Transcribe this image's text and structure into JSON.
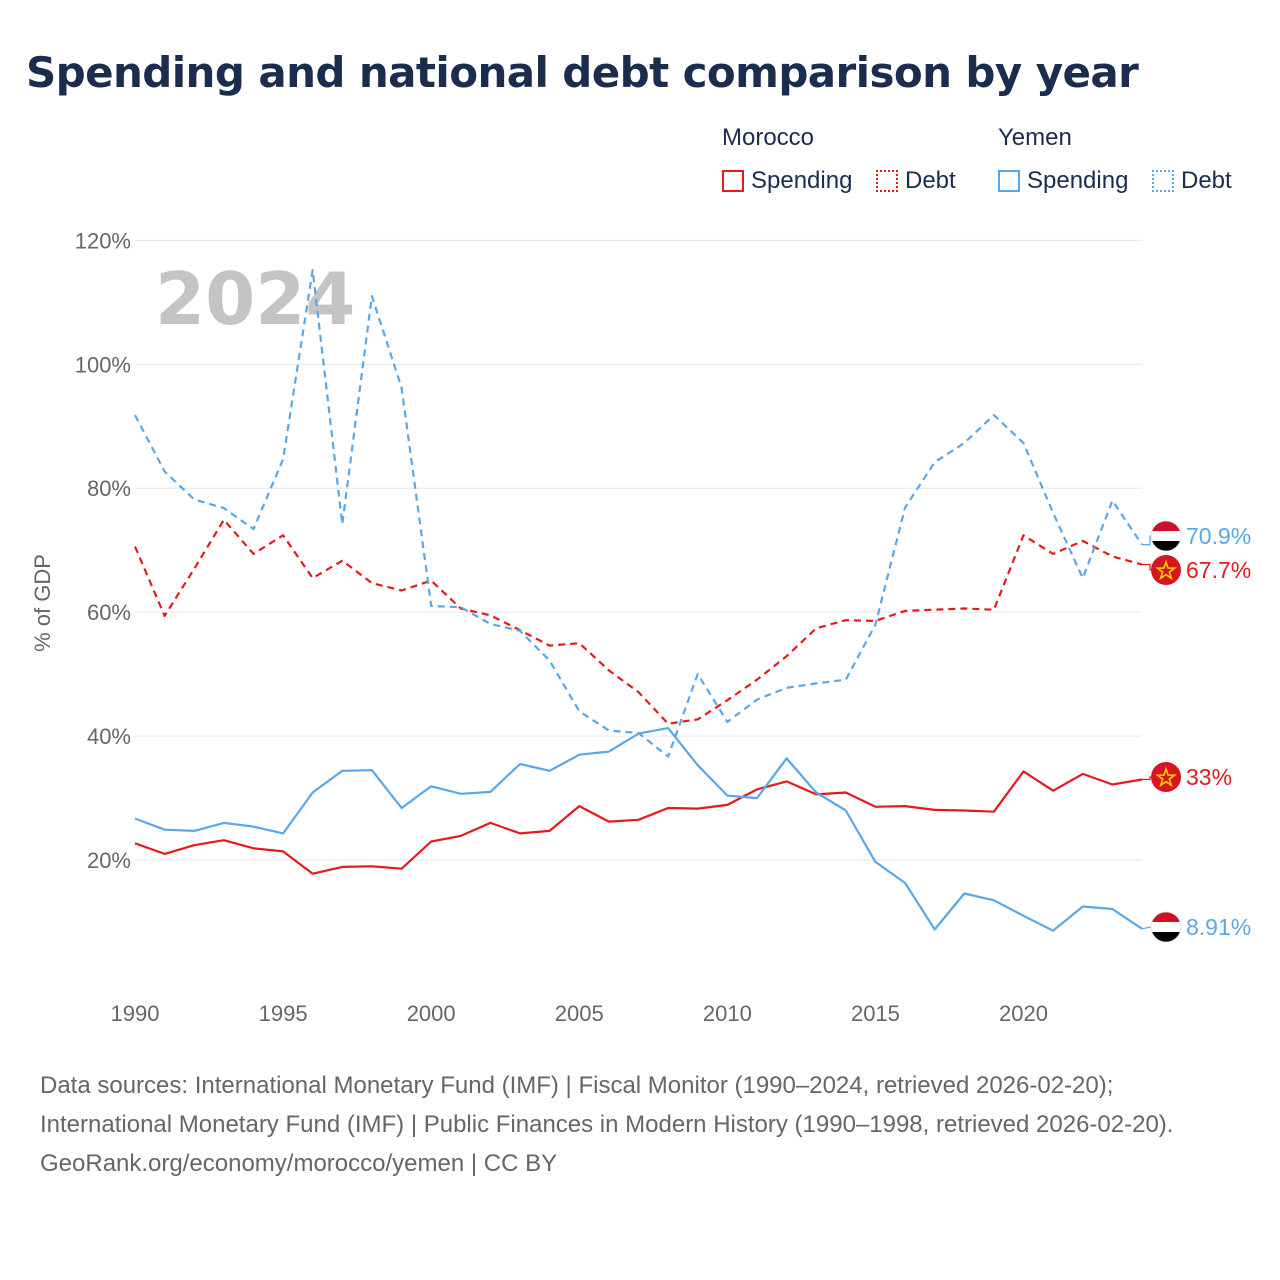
{
  "title": "Spending and national debt comparison by year",
  "legend": {
    "groups": [
      {
        "country": "Morocco",
        "items": [
          "Spending",
          "Debt"
        ],
        "color": "#e41a1c"
      },
      {
        "country": "Yemen",
        "items": [
          "Spending",
          "Debt"
        ],
        "color": "#5aa7e6"
      }
    ]
  },
  "footer": {
    "sources": "Data sources: International Monetary Fund (IMF) | Fiscal Monitor (1990–2024, retrieved 2026-02-20); International Monetary Fund (IMF) | Public Finances in Modern History (1990–1998, retrieved 2026-02-20).",
    "credit": "GeoRank.org/economy/morocco/yemen | CC BY"
  },
  "chart_data": {
    "type": "line",
    "title": "Spending and national debt comparison by year",
    "ylabel": "% of GDP",
    "xlabel": "",
    "year_label": "2024",
    "xlim": [
      1990,
      2024
    ],
    "ylim": [
      0,
      120
    ],
    "yticks": [
      20,
      40,
      60,
      80,
      100,
      120
    ],
    "ytick_labels": [
      "20%",
      "40%",
      "60%",
      "80%",
      "100%",
      "120%"
    ],
    "xticks": [
      1990,
      1995,
      2000,
      2005,
      2010,
      2015,
      2020
    ],
    "xtick_labels": [
      "1990",
      "1995",
      "2000",
      "2005",
      "2010",
      "2015",
      "2020"
    ],
    "grid": true,
    "x": [
      1990,
      1991,
      1992,
      1993,
      1994,
      1995,
      1996,
      1997,
      1998,
      1999,
      2000,
      2001,
      2002,
      2003,
      2004,
      2005,
      2006,
      2007,
      2008,
      2009,
      2010,
      2011,
      2012,
      2013,
      2014,
      2015,
      2016,
      2017,
      2018,
      2019,
      2020,
      2021,
      2022,
      2023,
      2024
    ],
    "series": [
      {
        "name": "Morocco Spending",
        "country": "Morocco",
        "kind": "Spending",
        "style": "solid",
        "color": "#e41a1c",
        "end_label": "33%",
        "values": [
          22.7,
          21.0,
          22.4,
          23.2,
          21.9,
          21.4,
          17.8,
          18.9,
          19.0,
          18.6,
          23.0,
          23.9,
          26.0,
          24.3,
          24.7,
          28.7,
          26.2,
          26.5,
          28.4,
          28.3,
          28.9,
          31.4,
          32.7,
          30.6,
          30.9,
          28.6,
          28.7,
          28.1,
          28.0,
          27.8,
          34.3,
          31.2,
          33.9,
          32.2,
          33.0
        ]
      },
      {
        "name": "Morocco Debt",
        "country": "Morocco",
        "kind": "Debt",
        "style": "dashed",
        "color": "#e41a1c",
        "end_label": "67.7%",
        "values": [
          70.6,
          59.4,
          67.0,
          74.9,
          69.4,
          72.4,
          65.5,
          68.3,
          64.7,
          63.5,
          65.1,
          60.6,
          59.5,
          57.1,
          54.6,
          55.0,
          50.6,
          47.1,
          42.0,
          42.7,
          45.8,
          49.1,
          52.9,
          57.4,
          58.7,
          58.6,
          60.2,
          60.4,
          60.6,
          60.4,
          72.4,
          69.4,
          71.5,
          69.0,
          67.7
        ]
      },
      {
        "name": "Yemen Spending",
        "country": "Yemen",
        "kind": "Spending",
        "style": "solid",
        "color": "#5aa7e6",
        "end_label": "8.91%",
        "values": [
          26.7,
          24.9,
          24.7,
          26.0,
          25.4,
          24.3,
          30.9,
          34.4,
          34.5,
          28.4,
          31.9,
          30.7,
          31.0,
          35.5,
          34.4,
          37.0,
          37.5,
          40.4,
          41.3,
          35.3,
          30.4,
          30.0,
          36.4,
          30.9,
          28.0,
          19.7,
          16.3,
          8.8,
          14.6,
          13.5,
          11.0,
          8.6,
          12.5,
          12.1,
          8.91
        ]
      },
      {
        "name": "Yemen Debt",
        "country": "Yemen",
        "kind": "Debt",
        "style": "dashed",
        "color": "#5aa7e6",
        "end_label": "70.9%",
        "values": [
          91.8,
          82.7,
          78.2,
          76.8,
          73.4,
          84.7,
          115.2,
          74.2,
          111.0,
          96.2,
          61.0,
          60.8,
          58.1,
          57.0,
          52.2,
          44.0,
          40.9,
          40.5,
          36.7,
          50.0,
          42.3,
          45.9,
          47.8,
          48.5,
          49.1,
          58.0,
          76.9,
          84.2,
          87.3,
          91.8,
          87.3,
          76.0,
          65.5,
          78.0,
          70.9
        ]
      }
    ]
  }
}
